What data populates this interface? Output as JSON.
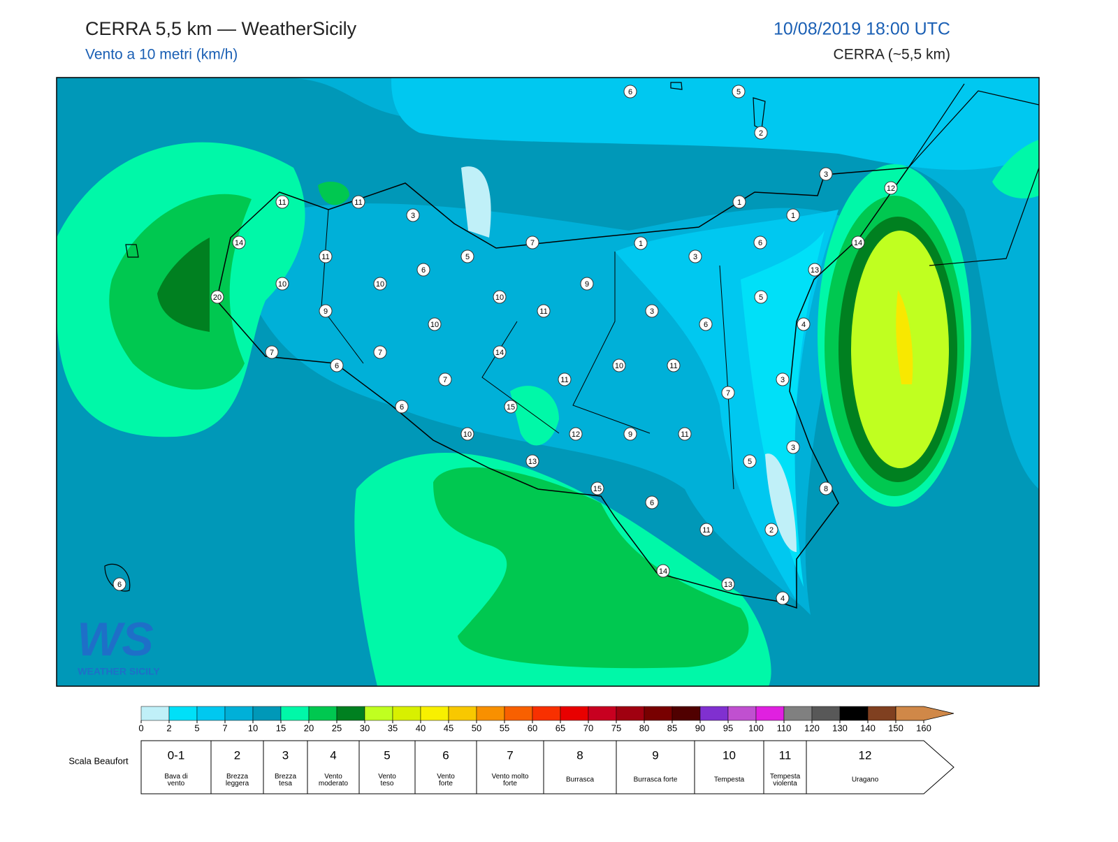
{
  "header": {
    "title": "CERRA 5,5 km — WeatherSicily",
    "subtitle": "Vento a 10 metri (km/h)",
    "datetime": "10/08/2019 18:00 UTC",
    "model": "CERRA (~5,5 km)"
  },
  "map": {
    "stations": [
      "6",
      "5",
      "2",
      "3",
      "12",
      "11",
      "11",
      "3",
      "1",
      "1",
      "14",
      "7",
      "1",
      "3",
      "6",
      "14",
      "11",
      "5",
      "6",
      "13",
      "10",
      "10",
      "9",
      "20",
      "10",
      "5",
      "11",
      "3",
      "9",
      "10",
      "6",
      "4",
      "7",
      "6",
      "7",
      "14",
      "10",
      "11",
      "7",
      "11",
      "3",
      "7",
      "15",
      "6",
      "10",
      "12",
      "9",
      "11",
      "3",
      "13",
      "5",
      "8",
      "15",
      "6",
      "11",
      "2",
      "14",
      "13",
      "4",
      "6"
    ],
    "logo": {
      "mark": "WS",
      "text": "WEATHER SICILY"
    }
  },
  "colorbar": {
    "ticks": [
      "0",
      "2",
      "5",
      "7",
      "10",
      "15",
      "20",
      "25",
      "30",
      "35",
      "40",
      "45",
      "50",
      "55",
      "60",
      "65",
      "70",
      "75",
      "80",
      "85",
      "90",
      "95",
      "100",
      "110",
      "120",
      "130",
      "140",
      "150",
      "160"
    ],
    "colors": [
      "#c0f0f8",
      "#00e0f8",
      "#00c8f0",
      "#00b0d8",
      "#0098b8",
      "#00f8a8",
      "#00c850",
      "#008020",
      "#c0ff20",
      "#d8f000",
      "#f8f000",
      "#f8c800",
      "#f89000",
      "#f86000",
      "#f83000",
      "#e80000",
      "#c80020",
      "#a00010",
      "#780000",
      "#500000",
      "#8030d0",
      "#c050d0",
      "#e020e0",
      "#808080",
      "#585858",
      "#000000",
      "#804020",
      "#d08848"
    ]
  },
  "beaufort": {
    "label": "Scala Beaufort",
    "levels": [
      {
        "force": "0-1",
        "name": "Bava di vento"
      },
      {
        "force": "2",
        "name": "Brezza leggera"
      },
      {
        "force": "3",
        "name": "Brezza tesa"
      },
      {
        "force": "4",
        "name": "Vento moderato"
      },
      {
        "force": "5",
        "name": "Vento teso"
      },
      {
        "force": "6",
        "name": "Vento forte"
      },
      {
        "force": "7",
        "name": "Vento molto forte"
      },
      {
        "force": "8",
        "name": "Burrasca"
      },
      {
        "force": "9",
        "name": "Burrasca forte"
      },
      {
        "force": "10",
        "name": "Tempesta"
      },
      {
        "force": "11",
        "name": "Tempesta violenta"
      },
      {
        "force": "12",
        "name": "Uragano"
      }
    ]
  }
}
